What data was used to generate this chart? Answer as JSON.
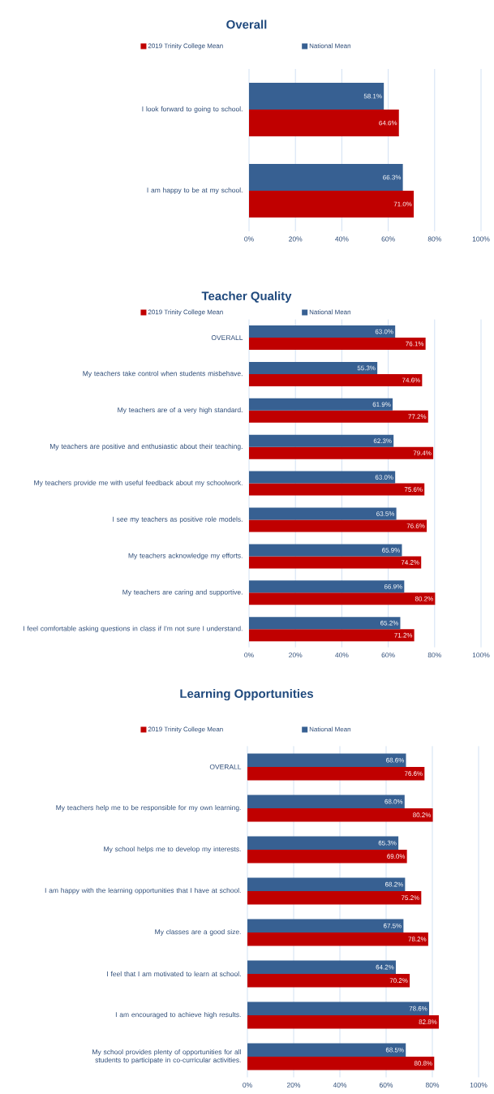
{
  "chart_data": [
    {
      "type": "bar",
      "orientation": "horizontal",
      "title": "Overall",
      "legend": "top",
      "grid": "x",
      "categories": [
        "I look forward to going to school.",
        "I am happy to be at my school."
      ],
      "series": [
        {
          "name": "2019 Trinity College Mean",
          "color": "#c00000",
          "values": [
            64.6,
            71.0
          ],
          "value_labels": [
            "64.6%",
            "71.0%"
          ]
        },
        {
          "name": "National Mean",
          "color": "#376092",
          "values": [
            58.1,
            66.3
          ],
          "value_labels": [
            "58.1%",
            "66.3%"
          ]
        }
      ],
      "xlim": [
        0,
        100
      ],
      "xticks": [
        {
          "value": 0,
          "label": "0%"
        },
        {
          "value": 20,
          "label": "20%"
        },
        {
          "value": 40,
          "label": "40%"
        },
        {
          "value": 60,
          "label": "60%"
        },
        {
          "value": 80,
          "label": "80%"
        },
        {
          "value": 100,
          "label": "100%"
        }
      ]
    },
    {
      "type": "bar",
      "orientation": "horizontal",
      "title": "Teacher Quality",
      "legend": "top",
      "grid": "x",
      "categories": [
        "OVERALL",
        "My teachers take control when students misbehave.",
        "My teachers are of a very high standard.",
        "My teachers are positive and enthusiastic about their teaching.",
        "My teachers provide me with useful feedback about my schoolwork.",
        "I see my teachers as positive role models.",
        "My teachers acknowledge my efforts.",
        "My teachers are caring and supportive.",
        "I feel comfortable asking questions in class if I'm not sure I understand."
      ],
      "series": [
        {
          "name": "2019 Trinity College Mean",
          "color": "#c00000",
          "values": [
            76.1,
            74.6,
            77.2,
            79.4,
            75.6,
            76.6,
            74.2,
            80.2,
            71.2
          ],
          "value_labels": [
            "76.1%",
            "74.6%",
            "77.2%",
            "79.4%",
            "75.6%",
            "76.6%",
            "74.2%",
            "80.2%",
            "71.2%"
          ]
        },
        {
          "name": "National Mean",
          "color": "#376092",
          "values": [
            63.0,
            55.3,
            61.9,
            62.3,
            63.0,
            63.5,
            65.9,
            66.9,
            65.2
          ],
          "value_labels": [
            "63.0%",
            "55.3%",
            "61.9%",
            "62.3%",
            "63.0%",
            "63.5%",
            "65.9%",
            "66.9%",
            "65.2%"
          ]
        }
      ],
      "xlim": [
        0,
        100
      ],
      "xticks": [
        {
          "value": 0,
          "label": "0%"
        },
        {
          "value": 20,
          "label": "20%"
        },
        {
          "value": 40,
          "label": "40%"
        },
        {
          "value": 60,
          "label": "60%"
        },
        {
          "value": 80,
          "label": "80%"
        },
        {
          "value": 100,
          "label": "100%"
        }
      ]
    },
    {
      "type": "bar",
      "orientation": "horizontal",
      "title": "Learning Opportunities",
      "legend": "top",
      "grid": "x",
      "categories": [
        "OVERALL",
        "My teachers help me to be responsible for my own learning.",
        "My school helps me to develop my interests.",
        "I am happy with the learning opportunities that I have at school.",
        "My classes are a good size.",
        "I feel that I am motivated to learn at school.",
        "I am encouraged to achieve high results.",
        "My school provides plenty of opportunities for all students to participate in co-curricular activities."
      ],
      "series": [
        {
          "name": "2019 Trinity College Mean",
          "color": "#c00000",
          "values": [
            76.6,
            80.2,
            69.0,
            75.2,
            78.2,
            70.2,
            82.8,
            80.8
          ],
          "value_labels": [
            "76.6%",
            "80.2%",
            "69.0%",
            "75.2%",
            "78.2%",
            "70.2%",
            "82.8%",
            "80.8%"
          ]
        },
        {
          "name": "National Mean",
          "color": "#376092",
          "values": [
            68.6,
            68.0,
            65.3,
            68.2,
            67.5,
            64.2,
            78.6,
            68.5
          ],
          "value_labels": [
            "68.6%",
            "68.0%",
            "65.3%",
            "68.2%",
            "67.5%",
            "64.2%",
            "78.6%",
            "68.5%"
          ]
        }
      ],
      "xlim": [
        0,
        100
      ],
      "xticks": [
        {
          "value": 0,
          "label": "0%"
        },
        {
          "value": 20,
          "label": "20%"
        },
        {
          "value": 40,
          "label": "40%"
        },
        {
          "value": 60,
          "label": "60%"
        },
        {
          "value": 80,
          "label": "80%"
        },
        {
          "value": 100,
          "label": "100%"
        }
      ]
    }
  ]
}
